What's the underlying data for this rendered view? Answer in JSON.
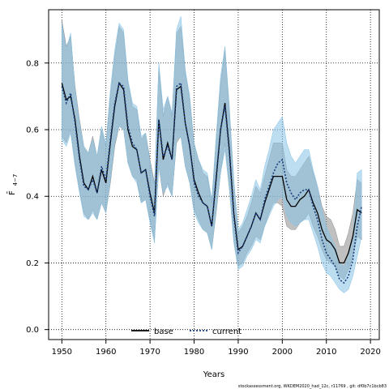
{
  "chart_data": {
    "type": "line",
    "xlabel": "Years",
    "ylabel": "F̄",
    "ylabel_sub": "4−7",
    "xlim": [
      1947,
      2022
    ],
    "ylim": [
      -0.03,
      0.96
    ],
    "x_ticks": [
      1950,
      1960,
      1970,
      1980,
      1990,
      2000,
      2010,
      2020
    ],
    "y_ticks": [
      0.0,
      0.2,
      0.4,
      0.6,
      0.8
    ],
    "grid": true,
    "legend": {
      "placement": "bottom-center",
      "entries": [
        "base",
        "current"
      ]
    },
    "colors": {
      "base_band": "#8c8c8c",
      "current_band": "#87c3e6",
      "base_line": "#000000",
      "current_line": "#1a3f80"
    },
    "credit": "stockassessment.org, WKDEM2020_had_12c, r11769 , git: df0b7c1bcb83",
    "x": [
      1950,
      1951,
      1952,
      1953,
      1954,
      1955,
      1956,
      1957,
      1958,
      1959,
      1960,
      1961,
      1962,
      1963,
      1964,
      1965,
      1966,
      1967,
      1968,
      1969,
      1970,
      1971,
      1972,
      1973,
      1974,
      1975,
      1976,
      1977,
      1978,
      1979,
      1980,
      1981,
      1982,
      1983,
      1984,
      1985,
      1986,
      1987,
      1988,
      1989,
      1990,
      1991,
      1992,
      1993,
      1994,
      1995,
      1996,
      1997,
      1998,
      1999,
      2000,
      2001,
      2002,
      2003,
      2004,
      2005,
      2006,
      2007,
      2008,
      2009,
      2010,
      2011,
      2012,
      2013,
      2014,
      2015,
      2016,
      2017,
      2018
    ],
    "series": [
      {
        "name": "base",
        "values": [
          0.74,
          0.69,
          0.7,
          0.63,
          0.52,
          0.44,
          0.42,
          0.46,
          0.41,
          0.48,
          0.44,
          0.56,
          0.67,
          0.74,
          0.72,
          0.6,
          0.55,
          0.54,
          0.47,
          0.48,
          0.41,
          0.35,
          0.63,
          0.51,
          0.56,
          0.51,
          0.72,
          0.73,
          0.62,
          0.55,
          0.45,
          0.41,
          0.38,
          0.37,
          0.31,
          0.45,
          0.6,
          0.68,
          0.54,
          0.35,
          0.24,
          0.25,
          0.28,
          0.31,
          0.35,
          0.33,
          0.38,
          0.42,
          0.46,
          0.46,
          0.46,
          0.39,
          0.37,
          0.37,
          0.39,
          0.4,
          0.42,
          0.38,
          0.35,
          0.3,
          0.27,
          0.26,
          0.24,
          0.2,
          0.2,
          0.23,
          0.28,
          0.36,
          0.35
        ],
        "lower": [
          0.58,
          0.56,
          0.6,
          0.5,
          0.42,
          0.35,
          0.33,
          0.36,
          0.33,
          0.38,
          0.35,
          0.44,
          0.55,
          0.61,
          0.6,
          0.5,
          0.46,
          0.45,
          0.38,
          0.39,
          0.33,
          0.27,
          0.49,
          0.4,
          0.44,
          0.4,
          0.56,
          0.58,
          0.49,
          0.44,
          0.36,
          0.33,
          0.3,
          0.29,
          0.24,
          0.35,
          0.47,
          0.56,
          0.43,
          0.27,
          0.19,
          0.2,
          0.23,
          0.25,
          0.28,
          0.27,
          0.31,
          0.35,
          0.38,
          0.38,
          0.37,
          0.31,
          0.3,
          0.3,
          0.32,
          0.33,
          0.35,
          0.31,
          0.28,
          0.24,
          0.21,
          0.2,
          0.19,
          0.16,
          0.15,
          0.18,
          0.22,
          0.28,
          0.27
        ],
        "upper": [
          0.93,
          0.85,
          0.88,
          0.73,
          0.63,
          0.55,
          0.53,
          0.58,
          0.52,
          0.6,
          0.55,
          0.7,
          0.82,
          0.91,
          0.89,
          0.74,
          0.67,
          0.66,
          0.57,
          0.59,
          0.51,
          0.44,
          0.79,
          0.64,
          0.7,
          0.64,
          0.89,
          0.91,
          0.77,
          0.69,
          0.56,
          0.51,
          0.47,
          0.46,
          0.38,
          0.56,
          0.74,
          0.84,
          0.66,
          0.44,
          0.29,
          0.31,
          0.34,
          0.38,
          0.43,
          0.41,
          0.46,
          0.51,
          0.56,
          0.56,
          0.56,
          0.48,
          0.46,
          0.46,
          0.48,
          0.5,
          0.52,
          0.47,
          0.43,
          0.37,
          0.34,
          0.33,
          0.3,
          0.25,
          0.25,
          0.29,
          0.35,
          0.45,
          0.44
        ]
      },
      {
        "name": "current",
        "values": [
          0.73,
          0.68,
          0.71,
          0.62,
          0.51,
          0.43,
          0.42,
          0.45,
          0.41,
          0.49,
          0.45,
          0.57,
          0.68,
          0.74,
          0.73,
          0.61,
          0.56,
          0.54,
          0.47,
          0.48,
          0.4,
          0.34,
          0.63,
          0.52,
          0.55,
          0.51,
          0.73,
          0.74,
          0.62,
          0.55,
          0.44,
          0.4,
          0.38,
          0.37,
          0.31,
          0.46,
          0.6,
          0.67,
          0.53,
          0.34,
          0.23,
          0.25,
          0.28,
          0.31,
          0.35,
          0.33,
          0.39,
          0.43,
          0.47,
          0.5,
          0.51,
          0.44,
          0.41,
          0.39,
          0.41,
          0.42,
          0.42,
          0.37,
          0.33,
          0.27,
          0.23,
          0.21,
          0.19,
          0.15,
          0.14,
          0.16,
          0.21,
          0.31,
          0.37
        ],
        "lower": [
          0.57,
          0.55,
          0.59,
          0.49,
          0.41,
          0.34,
          0.33,
          0.35,
          0.33,
          0.38,
          0.35,
          0.45,
          0.56,
          0.61,
          0.6,
          0.5,
          0.46,
          0.44,
          0.38,
          0.39,
          0.32,
          0.26,
          0.49,
          0.41,
          0.43,
          0.4,
          0.57,
          0.58,
          0.49,
          0.44,
          0.35,
          0.32,
          0.3,
          0.29,
          0.24,
          0.36,
          0.47,
          0.54,
          0.42,
          0.26,
          0.18,
          0.19,
          0.22,
          0.24,
          0.27,
          0.26,
          0.31,
          0.34,
          0.37,
          0.39,
          0.4,
          0.34,
          0.32,
          0.31,
          0.32,
          0.33,
          0.33,
          0.29,
          0.25,
          0.2,
          0.17,
          0.16,
          0.14,
          0.12,
          0.11,
          0.12,
          0.16,
          0.22,
          0.28
        ],
        "upper": [
          0.92,
          0.84,
          0.89,
          0.72,
          0.62,
          0.55,
          0.53,
          0.57,
          0.52,
          0.61,
          0.56,
          0.72,
          0.84,
          0.92,
          0.9,
          0.75,
          0.68,
          0.67,
          0.58,
          0.59,
          0.5,
          0.43,
          0.8,
          0.66,
          0.7,
          0.65,
          0.9,
          0.94,
          0.78,
          0.7,
          0.56,
          0.51,
          0.48,
          0.47,
          0.39,
          0.58,
          0.76,
          0.85,
          0.67,
          0.45,
          0.3,
          0.32,
          0.36,
          0.4,
          0.45,
          0.42,
          0.49,
          0.54,
          0.6,
          0.62,
          0.64,
          0.56,
          0.52,
          0.5,
          0.52,
          0.54,
          0.54,
          0.48,
          0.43,
          0.36,
          0.31,
          0.28,
          0.25,
          0.2,
          0.19,
          0.22,
          0.28,
          0.47,
          0.48
        ]
      }
    ]
  }
}
